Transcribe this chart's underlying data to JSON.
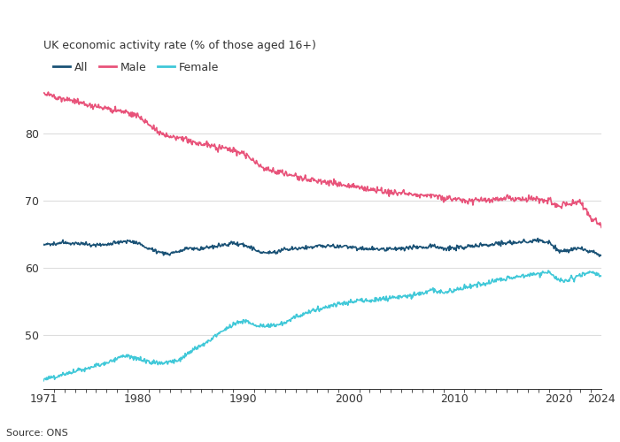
{
  "title": "UK economic activity rate (% of those aged 16+)",
  "source": "Source: ONS",
  "legend": [
    "All",
    "Male",
    "Female"
  ],
  "line_colors": {
    "All": "#1a5276",
    "Male": "#e8537a",
    "Female": "#40c8d8"
  },
  "line_widths": {
    "All": 1.2,
    "Male": 1.2,
    "Female": 1.2
  },
  "background_color": "#ffffff",
  "text_color": "#333333",
  "grid_color": "#dddddd",
  "yticks": [
    50,
    60,
    70,
    80
  ],
  "ylim": [
    42,
    88
  ],
  "xlim": [
    1971,
    2024
  ],
  "xticks": [
    1971,
    1980,
    1990,
    2000,
    2010,
    2020,
    2024
  ],
  "male_anchors_x": [
    1971,
    1972,
    1973,
    1974,
    1975,
    1976,
    1977,
    1978,
    1979,
    1980,
    1981,
    1982,
    1983,
    1984,
    1985,
    1986,
    1987,
    1988,
    1989,
    1990,
    1991,
    1992,
    1993,
    1994,
    1995,
    1996,
    1997,
    1998,
    1999,
    2000,
    2001,
    2002,
    2003,
    2004,
    2005,
    2006,
    2007,
    2008,
    2009,
    2010,
    2011,
    2012,
    2013,
    2014,
    2015,
    2016,
    2017,
    2018,
    2019,
    2020,
    2021,
    2022,
    2023,
    2024
  ],
  "male_anchors_y": [
    86.0,
    85.6,
    85.2,
    84.8,
    84.3,
    84.0,
    83.7,
    83.4,
    83.2,
    82.6,
    81.4,
    80.2,
    79.5,
    79.2,
    78.9,
    78.5,
    78.2,
    77.9,
    77.5,
    77.0,
    75.8,
    74.8,
    74.3,
    74.0,
    73.6,
    73.2,
    73.0,
    72.7,
    72.5,
    72.3,
    72.0,
    71.8,
    71.5,
    71.3,
    71.2,
    71.0,
    70.9,
    70.8,
    70.4,
    70.2,
    70.1,
    70.0,
    70.0,
    70.2,
    70.3,
    70.3,
    70.2,
    70.1,
    70.1,
    69.2,
    69.5,
    69.8,
    67.5,
    66.5
  ],
  "all_anchors_x": [
    1971,
    1972,
    1973,
    1974,
    1975,
    1976,
    1977,
    1978,
    1979,
    1980,
    1981,
    1982,
    1983,
    1984,
    1985,
    1986,
    1987,
    1988,
    1989,
    1990,
    1991,
    1992,
    1993,
    1994,
    1995,
    1996,
    1997,
    1998,
    1999,
    2000,
    2001,
    2002,
    2003,
    2004,
    2005,
    2006,
    2007,
    2008,
    2009,
    2010,
    2011,
    2012,
    2013,
    2014,
    2015,
    2016,
    2017,
    2018,
    2019,
    2020,
    2021,
    2022,
    2023,
    2024
  ],
  "all_anchors_y": [
    63.4,
    63.6,
    63.8,
    63.7,
    63.5,
    63.3,
    63.5,
    63.7,
    64.0,
    63.7,
    62.8,
    62.3,
    62.1,
    62.5,
    63.0,
    62.9,
    63.1,
    63.4,
    63.7,
    63.5,
    62.7,
    62.2,
    62.4,
    62.7,
    62.9,
    63.1,
    63.2,
    63.3,
    63.2,
    63.1,
    62.9,
    62.8,
    62.7,
    62.8,
    62.9,
    63.0,
    63.1,
    63.3,
    62.9,
    62.9,
    63.1,
    63.3,
    63.4,
    63.6,
    63.7,
    63.8,
    63.9,
    64.0,
    63.8,
    62.4,
    62.7,
    62.9,
    62.4,
    61.9
  ],
  "female_anchors_x": [
    1971,
    1972,
    1973,
    1974,
    1975,
    1976,
    1977,
    1978,
    1979,
    1980,
    1981,
    1982,
    1983,
    1984,
    1985,
    1986,
    1987,
    1988,
    1989,
    1990,
    1991,
    1992,
    1993,
    1994,
    1995,
    1996,
    1997,
    1998,
    1999,
    2000,
    2001,
    2002,
    2003,
    2004,
    2005,
    2006,
    2007,
    2008,
    2009,
    2010,
    2011,
    2012,
    2013,
    2014,
    2015,
    2016,
    2017,
    2018,
    2019,
    2020,
    2021,
    2022,
    2023,
    2024
  ],
  "female_anchors_y": [
    43.5,
    43.8,
    44.2,
    44.6,
    45.0,
    45.5,
    46.0,
    46.5,
    47.0,
    46.5,
    46.0,
    45.8,
    46.0,
    46.5,
    47.5,
    48.5,
    49.5,
    50.5,
    51.5,
    52.2,
    51.5,
    51.2,
    51.5,
    51.9,
    52.8,
    53.3,
    53.8,
    54.3,
    54.6,
    54.9,
    55.1,
    55.2,
    55.3,
    55.5,
    55.7,
    55.9,
    56.2,
    56.7,
    56.4,
    56.7,
    57.1,
    57.4,
    57.7,
    58.1,
    58.4,
    58.7,
    58.9,
    59.2,
    59.4,
    58.0,
    58.3,
    58.9,
    59.4,
    58.9
  ]
}
